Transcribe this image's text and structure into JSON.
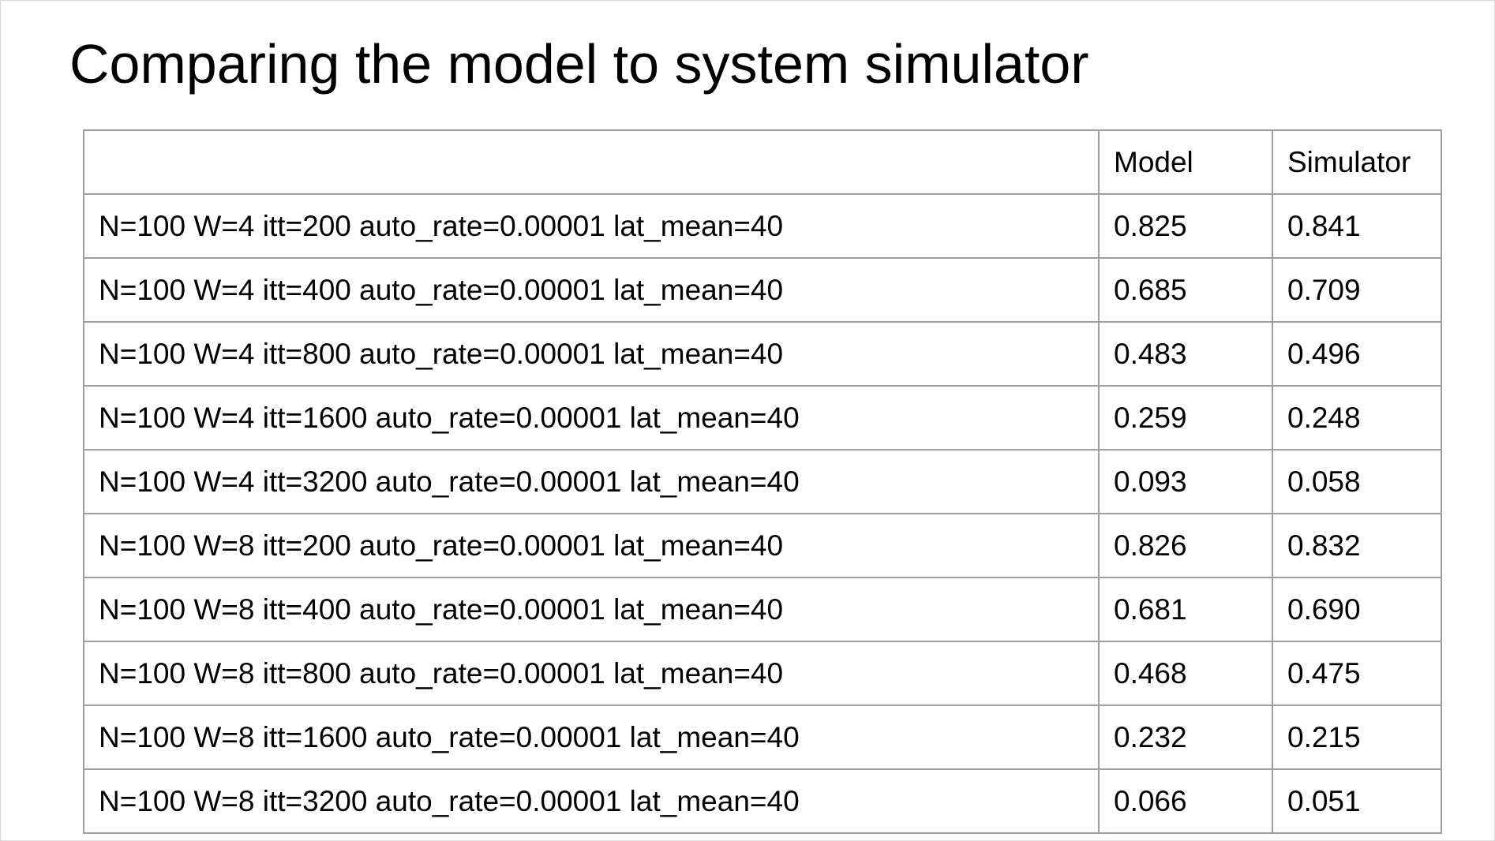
{
  "title": "Comparing the model to system simulator",
  "table": {
    "headers": [
      "",
      "Model",
      "Simulator"
    ],
    "rows": [
      {
        "config": "N=100 W=4 itt=200 auto_rate=0.00001 lat_mean=40",
        "model": "0.825",
        "simulator": "0.841"
      },
      {
        "config": "N=100 W=4 itt=400 auto_rate=0.00001 lat_mean=40",
        "model": "0.685",
        "simulator": "0.709"
      },
      {
        "config": "N=100 W=4 itt=800 auto_rate=0.00001 lat_mean=40",
        "model": "0.483",
        "simulator": "0.496"
      },
      {
        "config": "N=100 W=4 itt=1600 auto_rate=0.00001 lat_mean=40",
        "model": "0.259",
        "simulator": "0.248"
      },
      {
        "config": "N=100 W=4 itt=3200 auto_rate=0.00001 lat_mean=40",
        "model": "0.093",
        "simulator": "0.058"
      },
      {
        "config": "N=100 W=8 itt=200 auto_rate=0.00001 lat_mean=40",
        "model": "0.826",
        "simulator": "0.832"
      },
      {
        "config": "N=100 W=8 itt=400 auto_rate=0.00001 lat_mean=40",
        "model": "0.681",
        "simulator": "0.690"
      },
      {
        "config": "N=100 W=8 itt=800 auto_rate=0.00001 lat_mean=40",
        "model": "0.468",
        "simulator": "0.475"
      },
      {
        "config": "N=100 W=8 itt=1600 auto_rate=0.00001 lat_mean=40",
        "model": "0.232",
        "simulator": "0.215"
      },
      {
        "config": "N=100 W=8 itt=3200 auto_rate=0.00001 lat_mean=40",
        "model": "0.066",
        "simulator": "0.051"
      }
    ]
  },
  "colors": {
    "background": "#ffffff",
    "text": "#000000",
    "grid_line": "#9e9e9e",
    "slide_border": "#d8d8d8"
  }
}
